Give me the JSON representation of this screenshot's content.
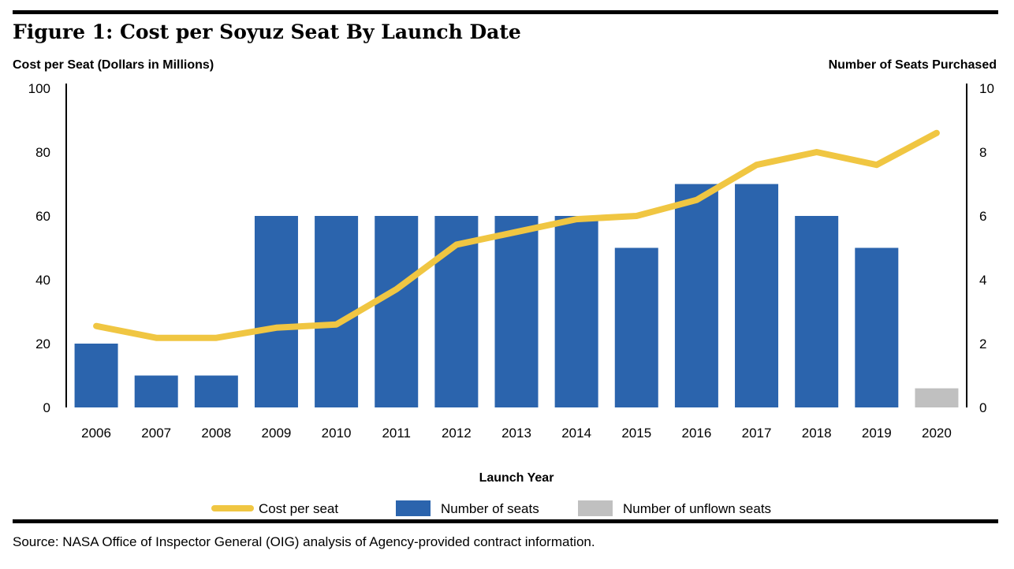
{
  "figure": {
    "title": "Figure 1:  Cost per Soyuz Seat By Launch Date",
    "source": "Source:  NASA Office of Inspector General (OIG) analysis of Agency-provided contract information."
  },
  "chart_data": {
    "type": "bar",
    "title": "Figure 1:  Cost per Soyuz Seat By Launch Date",
    "xlabel": "Launch Year",
    "ylabel": "Cost per Seat (Dollars in Millions)",
    "y2label": "Number of Seats Purchased",
    "ylim": [
      0,
      100
    ],
    "y2lim": [
      0,
      10
    ],
    "yticks": [
      0,
      20,
      40,
      60,
      80,
      100
    ],
    "y2ticks": [
      0,
      2,
      4,
      6,
      8,
      10
    ],
    "grid": false,
    "legend_position": "bottom",
    "categories": [
      "2006",
      "2007",
      "2008",
      "2009",
      "2010",
      "2011",
      "2012",
      "2013",
      "2014",
      "2015",
      "2016",
      "2017",
      "2018",
      "2019",
      "2020"
    ],
    "series": [
      {
        "name": "Cost per seat",
        "type": "line",
        "axis": "left",
        "color": "#F0C642",
        "values": [
          25.5,
          21.8,
          21.8,
          25,
          26,
          37,
          51,
          55,
          59,
          60,
          65,
          76,
          80,
          76,
          86
        ]
      },
      {
        "name": "Number of seats",
        "type": "bar",
        "axis": "right",
        "color": "#2B64AD",
        "values": [
          2,
          1,
          1,
          6,
          6,
          6,
          6,
          6,
          6,
          5,
          7,
          7,
          6,
          5,
          0
        ]
      },
      {
        "name": "Number of unflown seats",
        "type": "bar",
        "axis": "right",
        "color": "#C0C0C0",
        "values": [
          0,
          0,
          0,
          0,
          0,
          0,
          0,
          0,
          0,
          0,
          0,
          0,
          0,
          0,
          0.6
        ]
      }
    ]
  }
}
